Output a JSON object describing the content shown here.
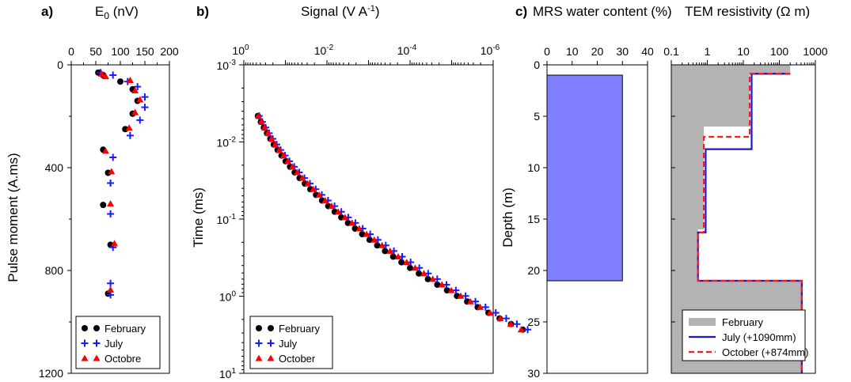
{
  "chart_data": [
    {
      "panel_label": "a)",
      "type": "scatter",
      "xlabel": "E",
      "xlabel_sub": "0",
      "xlabel_unit": " (nV)",
      "ylabel": "Pulse moment (A.ms)",
      "xlim": [
        0,
        200
      ],
      "ylim": [
        0,
        1200
      ],
      "y_reversed": true,
      "x_axis_position": "top",
      "xticks": [
        0,
        50,
        100,
        150,
        200
      ],
      "xtick_labels": [
        "0",
        "50",
        "100",
        "150",
        "200"
      ],
      "yticks": [
        0,
        400,
        800,
        1200
      ],
      "ytick_labels": [
        "0",
        "400",
        "800",
        "1200"
      ],
      "legend_position": "bottom-left",
      "series": [
        {
          "name": "February",
          "marker": "circle",
          "color": "#000000",
          "points": [
            [
              55,
              30
            ],
            [
              65,
              40
            ],
            [
              100,
              65
            ],
            [
              125,
              95
            ],
            [
              135,
              140
            ],
            [
              125,
              190
            ],
            [
              110,
              250
            ],
            [
              65,
              330
            ],
            [
              75,
              420
            ],
            [
              65,
              545
            ],
            [
              80,
              700
            ],
            [
              75,
              890
            ]
          ]
        },
        {
          "name": "July",
          "marker": "plus",
          "color": "#1a1aff",
          "points": [
            [
              60,
              30
            ],
            [
              85,
              40
            ],
            [
              115,
              65
            ],
            [
              135,
              85
            ],
            [
              150,
              125
            ],
            [
              150,
              165
            ],
            [
              140,
              215
            ],
            [
              120,
              275
            ],
            [
              85,
              360
            ],
            [
              80,
              460
            ],
            [
              80,
              580
            ],
            [
              85,
              710
            ],
            [
              80,
              850
            ],
            [
              80,
              895
            ]
          ]
        },
        {
          "name": "Octobre",
          "marker": "triangle",
          "color": "#ff0000",
          "points": [
            [
              62,
              35
            ],
            [
              70,
              45
            ],
            [
              120,
              60
            ],
            [
              130,
              100
            ],
            [
              140,
              135
            ],
            [
              130,
              185
            ],
            [
              118,
              245
            ],
            [
              70,
              335
            ],
            [
              82,
              415
            ],
            [
              80,
              540
            ],
            [
              88,
              695
            ],
            [
              80,
              875
            ]
          ]
        }
      ]
    },
    {
      "panel_label": "b)",
      "type": "scatter",
      "xlabel": "Signal (V A",
      "xlabel_sup": "-1",
      "xlabel_close": ")",
      "ylabel": "Time (ms)",
      "x_scale": "log",
      "y_scale": "log",
      "xlim": [
        1,
        1e-06
      ],
      "ylim": [
        0.001,
        10
      ],
      "x_axis_position": "top",
      "xticks": [
        1,
        0.01,
        0.0001,
        1e-06
      ],
      "xtick_labels": [
        {
          "base": "10",
          "exp": "0"
        },
        {
          "base": "10",
          "exp": "-2"
        },
        {
          "base": "10",
          "exp": "-4"
        },
        {
          "base": "10",
          "exp": "-6"
        }
      ],
      "yticks": [
        0.001,
        0.01,
        0.1,
        1,
        10
      ],
      "ytick_labels": [
        {
          "base": "10",
          "exp": "-3"
        },
        {
          "base": "10",
          "exp": "-2"
        },
        {
          "base": "10",
          "exp": "-1"
        },
        {
          "base": "10",
          "exp": "0"
        },
        {
          "base": "10",
          "exp": "1"
        }
      ],
      "legend_position": "bottom-left",
      "time_ms": [
        0.0046,
        0.0055,
        0.0065,
        0.0077,
        0.0091,
        0.0108,
        0.0127,
        0.015,
        0.0178,
        0.021,
        0.0248,
        0.0294,
        0.0347,
        0.041,
        0.0485,
        0.0574,
        0.0679,
        0.0803,
        0.095,
        0.1123,
        0.1328,
        0.157,
        0.1857,
        0.2196,
        0.2597,
        0.3071,
        0.3631,
        0.4294,
        0.5078,
        0.6005,
        0.7101,
        0.8397,
        0.993,
        1.174,
        1.389,
        1.642,
        1.942,
        2.296,
        2.716
      ],
      "series": [
        {
          "name": "February",
          "marker": "circle",
          "color": "#000000",
          "signal": [
            0.458,
            0.39,
            0.33,
            0.277,
            0.23,
            0.19,
            0.154,
            0.124,
            0.0985,
            0.0772,
            0.0597,
            0.0455,
            0.0341,
            0.0251,
            0.0183,
            0.0131,
            0.00931,
            0.00653,
            0.00453,
            0.00311,
            0.00211,
            0.00142,
            0.000941,
            0.000617,
            0.0004,
            0.000255,
            0.000161,
            0.0001,
            6.14e-05,
            3.71e-05,
            2.21e-05,
            1.29e-05,
            7.44e-06,
            4.23e-06,
            2.36e-06,
            1.3e-06,
            7.01e-07,
            3.72e-07,
            1.94e-07
          ]
        },
        {
          "name": "July",
          "marker": "plus",
          "color": "#1a1aff",
          "signal": [
            0.428,
            0.358,
            0.298,
            0.246,
            0.201,
            0.162,
            0.13,
            0.102,
            0.0797,
            0.0612,
            0.0464,
            0.0347,
            0.0256,
            0.0186,
            0.0133,
            0.00941,
            0.00656,
            0.00451,
            0.00307,
            0.00207,
            0.00138,
            0.00091,
            0.000594,
            0.000384,
            0.000245,
            0.000155,
            9.7e-05,
            6e-05,
            3.67e-05,
            2.22e-05,
            1.33e-05,
            7.89e-06,
            4.62e-06,
            2.68e-06,
            1.53e-06,
            8.68e-07,
            4.86e-07,
            2.69e-07,
            1.48e-07
          ]
        },
        {
          "name": "October",
          "marker": "triangle",
          "color": "#ff0000",
          "signal": [
            0.445,
            0.376,
            0.315,
            0.261,
            0.214,
            0.174,
            0.14,
            0.111,
            0.0873,
            0.0677,
            0.0518,
            0.0391,
            0.0291,
            0.0213,
            0.0154,
            0.011,
            0.00772,
            0.00536,
            0.00367,
            0.00249,
            0.00167,
            0.00111,
            0.000727,
            0.000472,
            0.000303,
            0.000193,
            0.000121,
            7.55e-05,
            4.65e-05,
            2.84e-05,
            1.71e-05,
            1.02e-05,
            6.06e-06,
            3.55e-06,
            2.06e-06,
            1.19e-06,
            6.76e-07,
            3.8e-07,
            2.12e-07
          ]
        }
      ]
    },
    {
      "panel_label": "c)",
      "type": "bar",
      "xlabel": "MRS water content (%)",
      "ylabel": "Depth (m)",
      "xlim": [
        0,
        40
      ],
      "ylim": [
        0,
        30
      ],
      "y_reversed": true,
      "x_axis_position": "top",
      "xticks": [
        0,
        10,
        20,
        30,
        40
      ],
      "xtick_labels": [
        "0",
        "10",
        "20",
        "30",
        "40"
      ],
      "yticks": [
        0,
        5,
        10,
        15,
        20,
        25,
        30
      ],
      "ytick_labels": [
        "0",
        "5",
        "10",
        "15",
        "20",
        "25",
        "30"
      ],
      "bar_fill": "#8080ff",
      "layers": [
        {
          "water_content": 30,
          "depth_top": 1,
          "depth_bottom": 21
        }
      ]
    },
    {
      "type": "area",
      "xlabel": "TEM resistivity (",
      "xlabel_symbol": "Ω",
      "xlabel_unit": " m)",
      "x_scale": "log",
      "xlim": [
        0.1,
        1000
      ],
      "ylim": [
        0,
        30
      ],
      "y_reversed": true,
      "x_axis_position": "top",
      "xticks": [
        0.1,
        1,
        10,
        100,
        1000
      ],
      "xtick_labels": [
        "0.1",
        "1",
        "10",
        "100",
        "1000"
      ],
      "legend_position": "bottom-right",
      "series": [
        {
          "name": "February",
          "style": "fill",
          "color": "#b3b3b3",
          "steps": [
            [
              0,
              200
            ],
            [
              1,
              200
            ],
            [
              1,
              15
            ],
            [
              6,
              15
            ],
            [
              6,
              0.8
            ],
            [
              16,
              0.8
            ],
            [
              16,
              0.55
            ],
            [
              21,
              0.55
            ],
            [
              21,
              450
            ],
            [
              30,
              450
            ]
          ]
        },
        {
          "name": "July (+1090mm)",
          "style": "solid",
          "color": "#1a1acc",
          "steps": [
            [
              0.85,
              200
            ],
            [
              0.85,
              17
            ],
            [
              8.2,
              17
            ],
            [
              8.2,
              0.9
            ],
            [
              16.3,
              0.9
            ],
            [
              16.3,
              0.55
            ],
            [
              21,
              0.55
            ],
            [
              21,
              420
            ],
            [
              30,
              420
            ]
          ]
        },
        {
          "name": "October (+874mm)",
          "style": "dashed",
          "color": "#ff1a1a",
          "steps": [
            [
              0.85,
              200
            ],
            [
              0.85,
              15
            ],
            [
              7,
              15
            ],
            [
              7,
              0.8
            ],
            [
              16.3,
              0.8
            ],
            [
              16.3,
              0.55
            ],
            [
              21,
              0.55
            ],
            [
              21,
              420
            ],
            [
              30,
              420
            ]
          ]
        }
      ]
    }
  ]
}
